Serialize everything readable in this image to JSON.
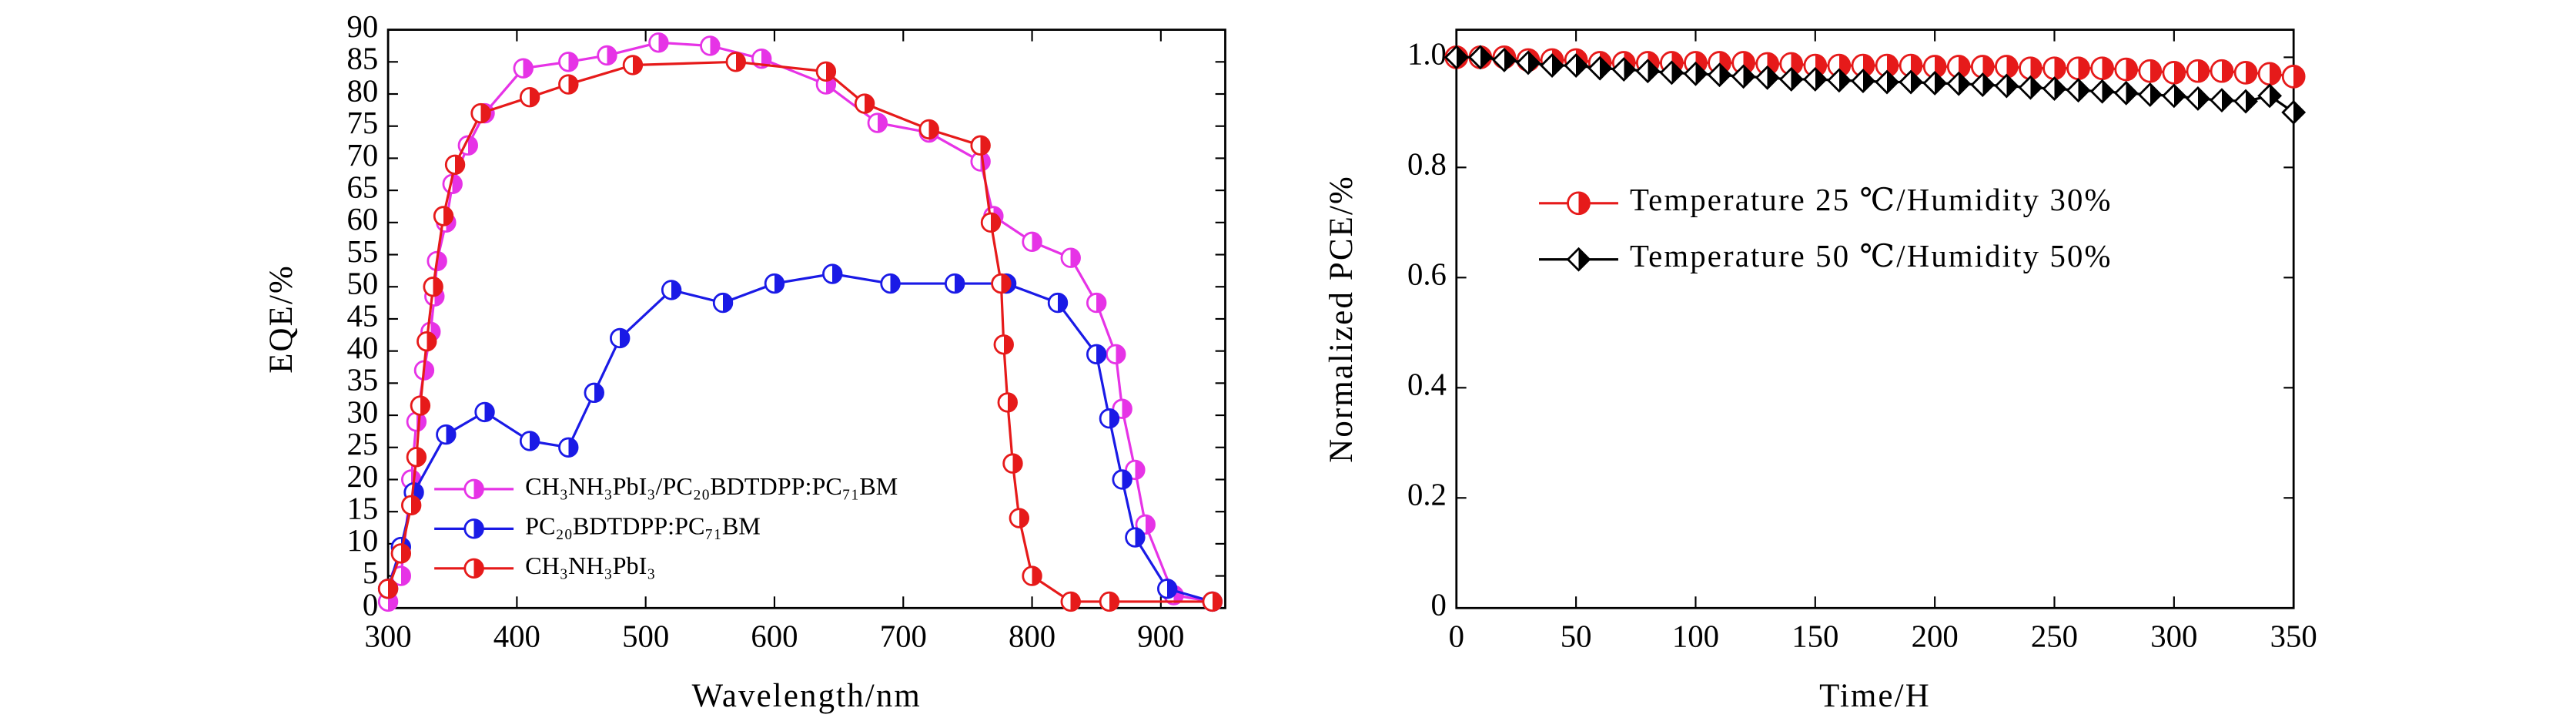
{
  "chart_data": [
    {
      "type": "line",
      "xlabel": "Wavelength/nm",
      "ylabel": "EQE/%",
      "xlim": [
        300,
        950
      ],
      "ylim": [
        0,
        90
      ],
      "xticks": [
        300,
        400,
        500,
        600,
        700,
        800,
        900
      ],
      "yticks": [
        0,
        5,
        10,
        15,
        20,
        25,
        30,
        35,
        40,
        45,
        50,
        55,
        60,
        65,
        70,
        75,
        80,
        85,
        90
      ],
      "legend": "lower left",
      "series": [
        {
          "name": "CH₃NH₃PbI₃/PC₂₀BDTDPP:PC₇₁BM",
          "color": "#e633e6",
          "marker": "circle",
          "x": [
            300,
            310,
            318,
            322,
            328,
            333,
            336,
            338,
            345,
            350,
            362,
            375,
            405,
            440,
            470,
            510,
            550,
            590,
            640,
            680,
            720,
            760,
            770,
            800,
            830,
            850,
            865,
            870,
            880,
            888,
            910,
            940
          ],
          "values": [
            1,
            5,
            20,
            29,
            37,
            43,
            48.5,
            54,
            60,
            66,
            72,
            77,
            84,
            85,
            86,
            88,
            87.5,
            85.5,
            81.5,
            75.5,
            74,
            69.5,
            61,
            57,
            54.5,
            47.5,
            39.5,
            31,
            21.5,
            13,
            2,
            1
          ]
        },
        {
          "name": "PC₂₀BDTDPP:PC₇₁BM",
          "color": "#1a1ae6",
          "marker": "circle",
          "x": [
            300,
            310,
            320,
            345,
            375,
            410,
            440,
            460,
            480,
            520,
            560,
            600,
            645,
            690,
            740,
            780,
            820,
            850,
            860,
            870,
            880,
            905,
            940
          ],
          "values": [
            3,
            9.5,
            18,
            27,
            30.5,
            26,
            25,
            33.5,
            42,
            49.5,
            47.5,
            50.5,
            52,
            50.5,
            50.5,
            50.5,
            47.5,
            39.5,
            29.5,
            20,
            11,
            3,
            1
          ]
        },
        {
          "name": "CH₃NH₃PbI₃",
          "color": "#e61a1a",
          "marker": "circle",
          "x": [
            300,
            310,
            318,
            322,
            325,
            330,
            335,
            343,
            352,
            372,
            410,
            440,
            490,
            570,
            640,
            670,
            720,
            760,
            768,
            776,
            778,
            781,
            785,
            790,
            800,
            830,
            860,
            940
          ],
          "values": [
            3,
            8.5,
            16,
            23.5,
            31.5,
            41.5,
            50,
            61,
            69,
            77,
            79.5,
            81.5,
            84.5,
            85,
            83.5,
            78.5,
            74.5,
            72,
            60,
            50.5,
            41,
            32,
            22.5,
            14,
            5,
            1,
            1,
            1
          ]
        }
      ]
    },
    {
      "type": "line",
      "xlabel": "Time/H",
      "ylabel": "Normalized PCE/%",
      "xlim": [
        0,
        350
      ],
      "ylim": [
        0,
        1.05
      ],
      "xticks": [
        0,
        50,
        100,
        150,
        200,
        250,
        300,
        350
      ],
      "yticks": [
        0,
        0.2,
        0.4,
        0.6,
        0.8,
        {
          "value": 1,
          "label": "1.0"
        }
      ],
      "legend": "center left",
      "series": [
        {
          "name": "Temperature 25 ℃/Humidity 30%",
          "color": "#e61a1a",
          "marker": "circle",
          "x": [
            0,
            10,
            20,
            30,
            40,
            50,
            60,
            70,
            80,
            90,
            100,
            110,
            120,
            130,
            140,
            150,
            160,
            170,
            180,
            190,
            200,
            210,
            220,
            230,
            240,
            250,
            260,
            270,
            280,
            290,
            300,
            310,
            320,
            330,
            340,
            350
          ],
          "values": [
            1.0,
            1.0,
            1.0,
            0.995,
            0.995,
            0.995,
            0.99,
            0.99,
            0.99,
            0.99,
            0.99,
            0.99,
            0.99,
            0.988,
            0.988,
            0.985,
            0.985,
            0.985,
            0.985,
            0.985,
            0.983,
            0.983,
            0.983,
            0.983,
            0.98,
            0.98,
            0.98,
            0.98,
            0.978,
            0.975,
            0.972,
            0.975,
            0.975,
            0.972,
            0.97,
            0.965
          ]
        },
        {
          "name": "Temperature 50 ℃/Humidity 50%",
          "color": "#000000",
          "marker": "diamond",
          "x": [
            0,
            10,
            20,
            30,
            40,
            50,
            60,
            70,
            80,
            90,
            100,
            110,
            120,
            130,
            140,
            150,
            160,
            170,
            180,
            190,
            200,
            210,
            220,
            230,
            240,
            250,
            260,
            270,
            280,
            290,
            300,
            310,
            320,
            330,
            340,
            350
          ],
          "values": [
            1.0,
            1.0,
            0.995,
            0.99,
            0.985,
            0.985,
            0.98,
            0.978,
            0.975,
            0.972,
            0.97,
            0.968,
            0.965,
            0.963,
            0.96,
            0.96,
            0.958,
            0.957,
            0.955,
            0.955,
            0.953,
            0.952,
            0.95,
            0.948,
            0.945,
            0.943,
            0.94,
            0.938,
            0.935,
            0.932,
            0.93,
            0.925,
            0.922,
            0.92,
            0.93,
            0.9
          ]
        }
      ]
    }
  ]
}
